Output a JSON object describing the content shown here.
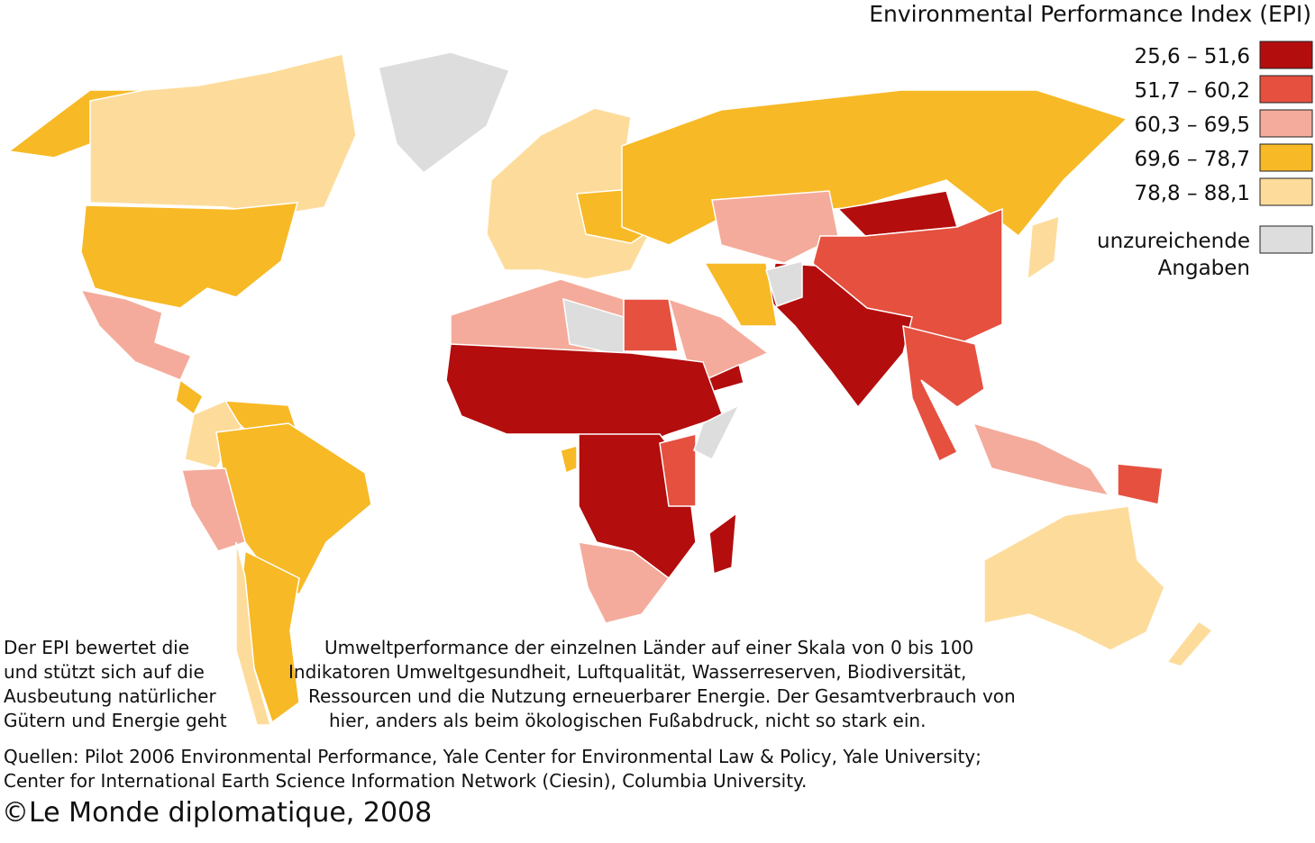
{
  "title": "Environmental Performance Index (EPI)",
  "legend": [
    {
      "label": "25,6 – 51,6",
      "color": "#b30d0d"
    },
    {
      "label": "51,7 – 60,2",
      "color": "#e5503f"
    },
    {
      "label": "60,3 – 69,5",
      "color": "#f4ab9b"
    },
    {
      "label": "69,6 – 78,7",
      "color": "#f7b925"
    },
    {
      "label": "78,8 – 88,1",
      "color": "#fddc9b"
    },
    {
      "label": "unzureichende Angaben",
      "color": "#dddddd"
    }
  ],
  "description": [
    [
      "Der EPI bewertet die",
      "Umweltperformance der einzelnen Länder auf einer Skala von 0 bis 100"
    ],
    [
      "und stützt sich auf die",
      "Indikatoren Umweltgesundheit, Luftqualität, Wasserreserven, Biodiversität,"
    ],
    [
      "Ausbeutung natürlicher",
      "Ressourcen und die Nutzung erneuerbarer Energie. Der Gesamtverbrauch von"
    ],
    [
      "Gütern und Energie geht",
      "hier, anders als beim ökologischen Fußabdruck, nicht so stark ein."
    ]
  ],
  "sources": [
    "Quellen: Pilot 2006 Environmental Performance, Yale Center for Environmental Law & Policy, Yale University;",
    "Center for International Earth Science Information Network (Ciesin), Columbia University."
  ],
  "credit": "©Le Monde diplomatique, 2008"
}
